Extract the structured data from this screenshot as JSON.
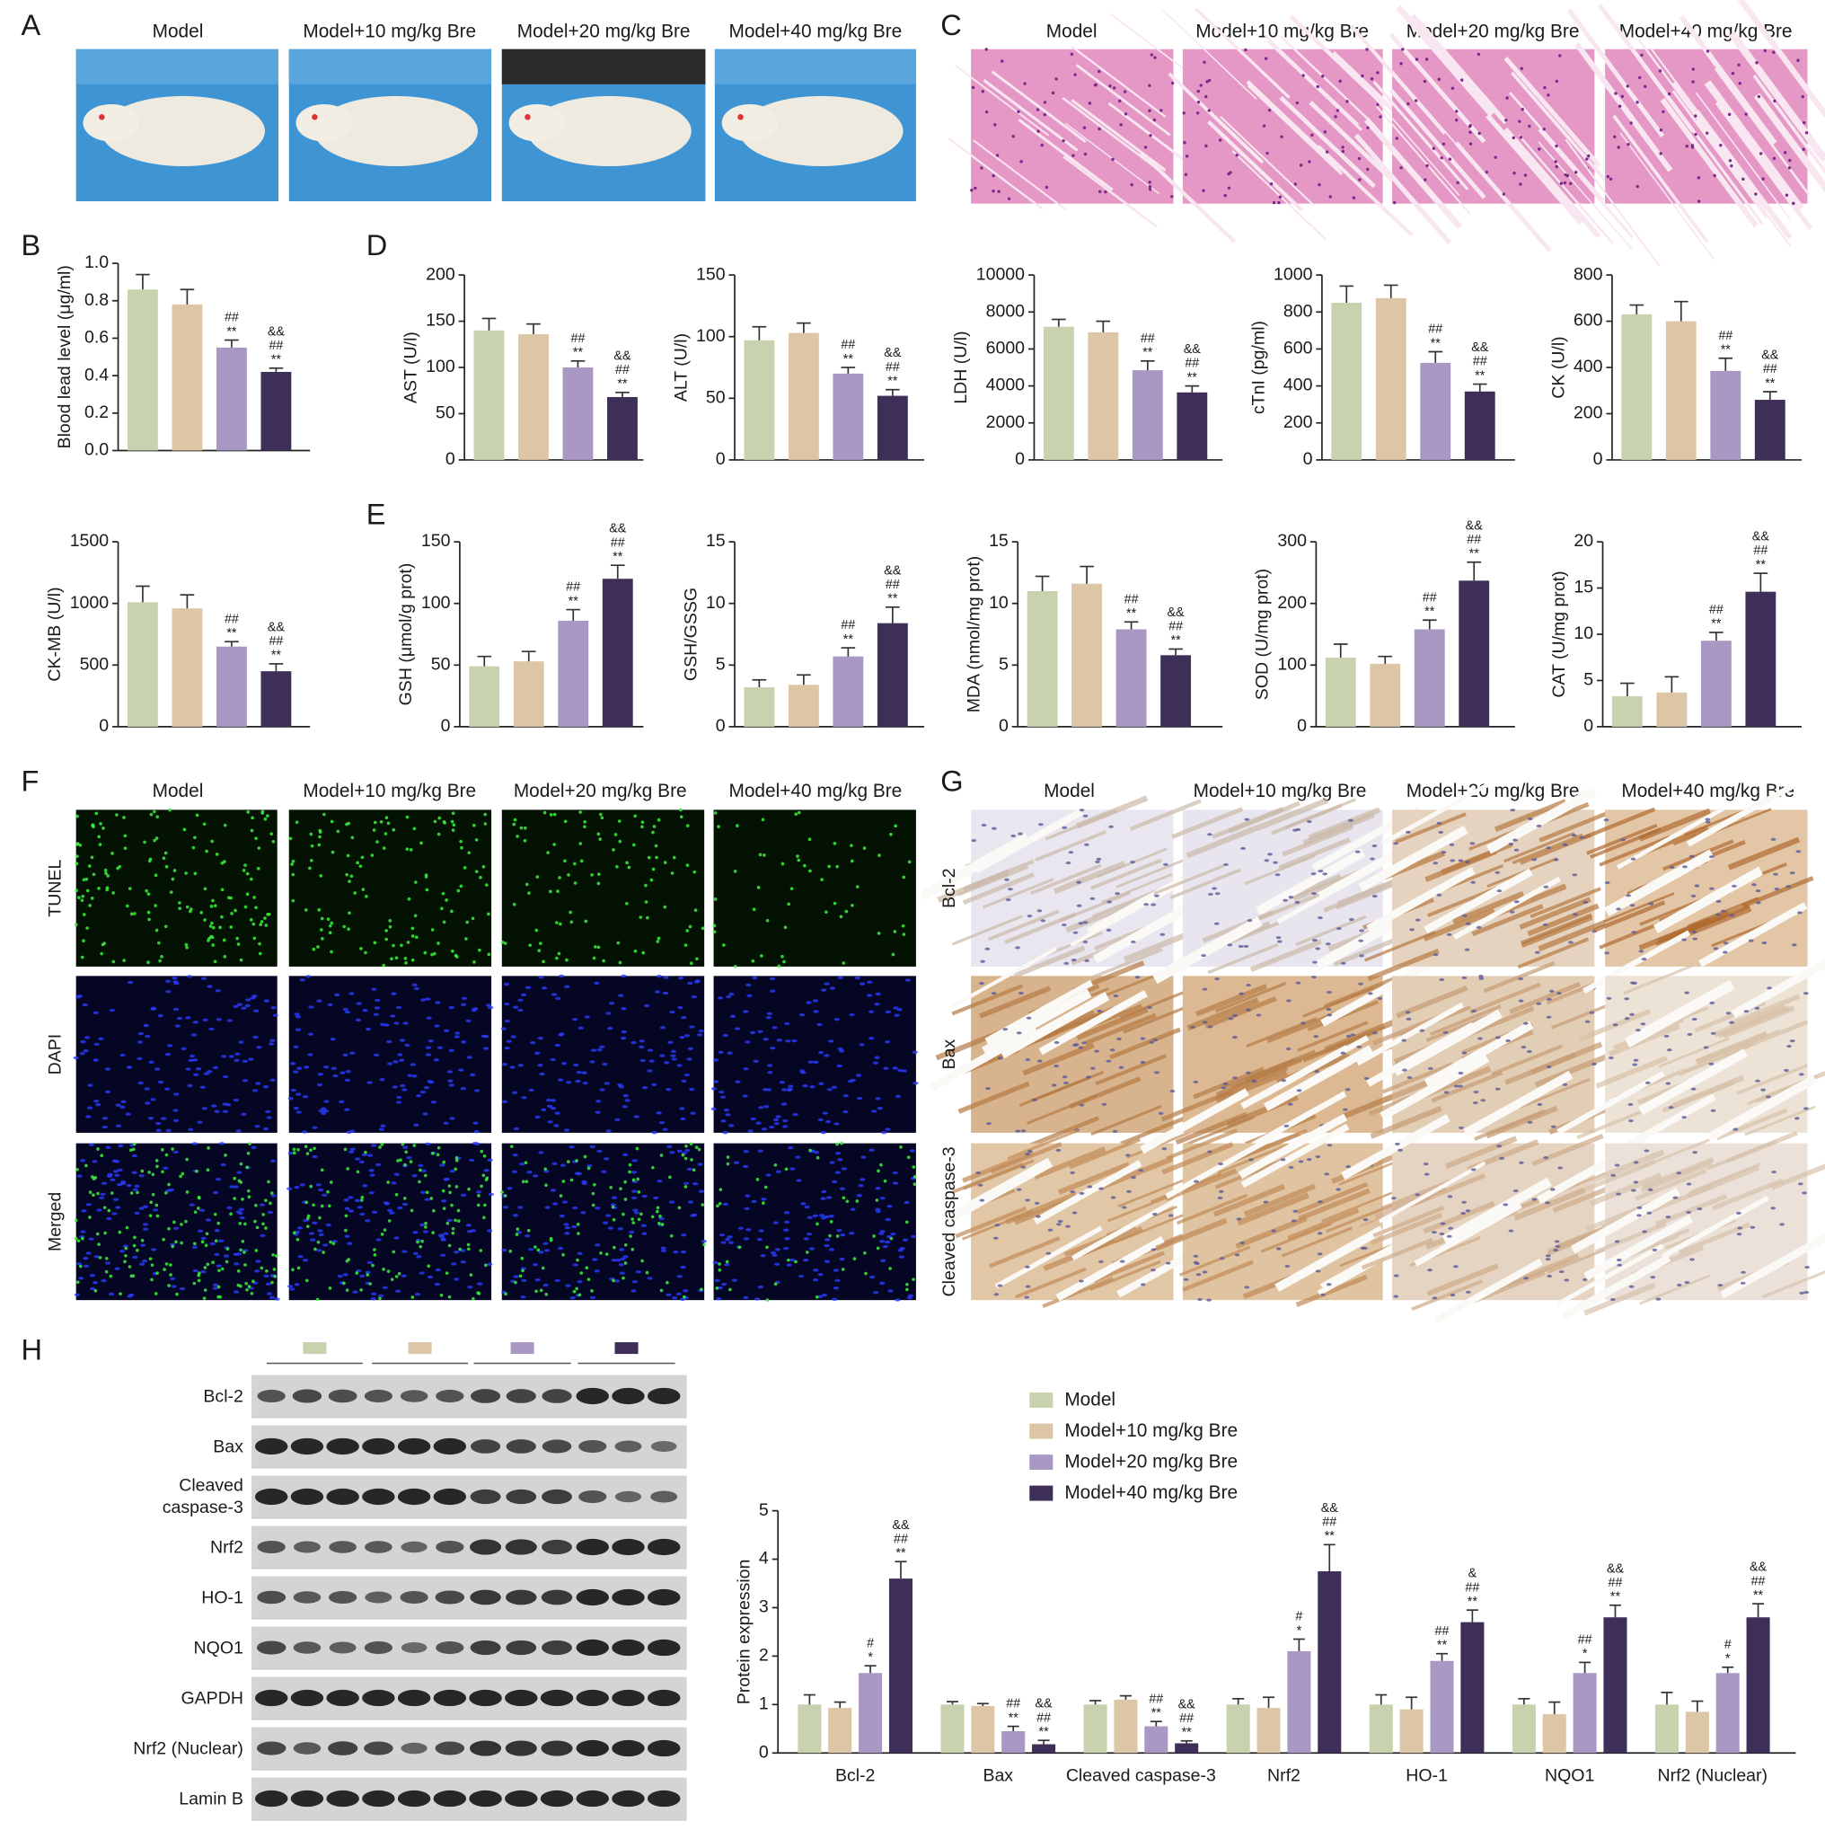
{
  "panel_labels": [
    "A",
    "B",
    "C",
    "D",
    "E",
    "F",
    "G",
    "H"
  ],
  "group_headers": [
    "Model",
    "Model+10 mg/kg Bre",
    "Model+20 mg/kg Bre",
    "Model+40 mg/kg Bre"
  ],
  "panel_f_rows": [
    "TUNEL",
    "DAPI",
    "Merged"
  ],
  "panel_g_rows": [
    "Bcl-2",
    "Bax",
    "Cleaved caspase-3"
  ],
  "blot_rows": [
    "Bcl-2",
    "Bax",
    "Cleaved caspase-3",
    "Nrf2",
    "HO-1",
    "NQO1",
    "GAPDH",
    "Nrf2 (Nuclear)",
    "Lamin B"
  ],
  "chart_data": [
    {
      "type": "bar",
      "ylabel": "Blood lead level (μg/ml)",
      "colors": [
        "#c9d2ae",
        "#dcc6a6",
        "#a998c4",
        "#3d2f58"
      ],
      "values": [
        0.86,
        0.78,
        0.55,
        0.42
      ],
      "errors": [
        0.08,
        0.08,
        0.04,
        0.02
      ],
      "significance": [
        [],
        [],
        [
          "##",
          "**"
        ],
        [
          "&&",
          "##",
          "**"
        ]
      ],
      "ylim": [
        0,
        1.0
      ],
      "yticks": [
        {
          "value": 0,
          "label": "0.0"
        },
        {
          "value": 0.2,
          "label": "0.2"
        },
        {
          "value": 0.4,
          "label": "0.4"
        },
        {
          "value": 0.6,
          "label": "0.6"
        },
        {
          "value": 0.8,
          "label": "0.8"
        },
        {
          "value": 1.0,
          "label": "1.0"
        }
      ]
    },
    {
      "type": "bar",
      "ylabel": "AST (U/l)",
      "colors": [
        "#c9d2ae",
        "#dcc6a6",
        "#a998c4",
        "#3d2f58"
      ],
      "values": [
        140,
        136,
        100,
        68
      ],
      "errors": [
        13,
        11,
        7,
        5
      ],
      "significance": [
        [],
        [],
        [
          "##",
          "**"
        ],
        [
          "&&",
          "##",
          "**"
        ]
      ],
      "ylim": [
        0,
        200
      ],
      "yticks": [
        0,
        50,
        100,
        150,
        200
      ]
    },
    {
      "type": "bar",
      "ylabel": "ALT (U/l)",
      "colors": [
        "#c9d2ae",
        "#dcc6a6",
        "#a998c4",
        "#3d2f58"
      ],
      "values": [
        97,
        103,
        70,
        52
      ],
      "errors": [
        11,
        8,
        5,
        5
      ],
      "significance": [
        [],
        [],
        [
          "##",
          "**"
        ],
        [
          "&&",
          "##",
          "**"
        ]
      ],
      "ylim": [
        0,
        150
      ],
      "yticks": [
        0,
        50,
        100,
        150
      ]
    },
    {
      "type": "bar",
      "ylabel": "LDH (U/l)",
      "colors": [
        "#c9d2ae",
        "#dcc6a6",
        "#a998c4",
        "#3d2f58"
      ],
      "values": [
        7200,
        6900,
        4850,
        3650
      ],
      "errors": [
        400,
        600,
        500,
        350
      ],
      "significance": [
        [],
        [],
        [
          "##",
          "**"
        ],
        [
          "&&",
          "##",
          "**"
        ]
      ],
      "ylim": [
        0,
        10000
      ],
      "yticks": [
        0,
        2000,
        4000,
        6000,
        8000,
        10000
      ]
    },
    {
      "type": "bar",
      "ylabel": "cTnI (pg/ml)",
      "colors": [
        "#c9d2ae",
        "#dcc6a6",
        "#a998c4",
        "#3d2f58"
      ],
      "values": [
        850,
        875,
        525,
        370
      ],
      "errors": [
        90,
        70,
        60,
        40
      ],
      "significance": [
        [],
        [],
        [
          "##",
          "**"
        ],
        [
          "&&",
          "##",
          "**"
        ]
      ],
      "ylim": [
        0,
        1000
      ],
      "yticks": [
        0,
        200,
        400,
        600,
        800,
        1000
      ]
    },
    {
      "type": "bar",
      "ylabel": "CK (U/l)",
      "colors": [
        "#c9d2ae",
        "#dcc6a6",
        "#a998c4",
        "#3d2f58"
      ],
      "values": [
        630,
        600,
        385,
        260
      ],
      "errors": [
        40,
        85,
        55,
        35
      ],
      "significance": [
        [],
        [],
        [
          "##",
          "**"
        ],
        [
          "&&",
          "##",
          "**"
        ]
      ],
      "ylim": [
        0,
        800
      ],
      "yticks": [
        0,
        200,
        400,
        600,
        800
      ]
    },
    {
      "type": "bar",
      "ylabel": "CK-MB (U/l)",
      "colors": [
        "#c9d2ae",
        "#dcc6a6",
        "#a998c4",
        "#3d2f58"
      ],
      "values": [
        1010,
        960,
        650,
        450
      ],
      "errors": [
        130,
        110,
        40,
        60
      ],
      "significance": [
        [],
        [],
        [
          "##",
          "**"
        ],
        [
          "&&",
          "##",
          "**"
        ]
      ],
      "ylim": [
        0,
        1500
      ],
      "yticks": [
        0,
        500,
        1000,
        1500
      ]
    },
    {
      "type": "bar",
      "ylabel": "GSH (μmol/g prot)",
      "colors": [
        "#c9d2ae",
        "#dcc6a6",
        "#a998c4",
        "#3d2f58"
      ],
      "values": [
        49,
        53,
        86,
        120
      ],
      "errors": [
        8,
        8,
        9,
        11
      ],
      "significance": [
        [],
        [],
        [
          "##",
          "**"
        ],
        [
          "&&",
          "##",
          "**"
        ]
      ],
      "ylim": [
        0,
        150
      ],
      "yticks": [
        0,
        50,
        100,
        150
      ]
    },
    {
      "type": "bar",
      "ylabel": "GSH/GSSG",
      "colors": [
        "#c9d2ae",
        "#dcc6a6",
        "#a998c4",
        "#3d2f58"
      ],
      "values": [
        3.2,
        3.4,
        5.7,
        8.4
      ],
      "errors": [
        0.6,
        0.8,
        0.7,
        1.3
      ],
      "significance": [
        [],
        [],
        [
          "##",
          "**"
        ],
        [
          "&&",
          "##",
          "**"
        ]
      ],
      "ylim": [
        0,
        15
      ],
      "yticks": [
        0,
        5,
        10,
        15
      ]
    },
    {
      "type": "bar",
      "ylabel": "MDA (nmol/mg prot)",
      "colors": [
        "#c9d2ae",
        "#dcc6a6",
        "#a998c4",
        "#3d2f58"
      ],
      "values": [
        11.0,
        11.6,
        7.9,
        5.8
      ],
      "errors": [
        1.2,
        1.4,
        0.6,
        0.5
      ],
      "significance": [
        [],
        [],
        [
          "##",
          "**"
        ],
        [
          "&&",
          "##",
          "**"
        ]
      ],
      "ylim": [
        0,
        15
      ],
      "yticks": [
        0,
        5,
        10,
        15
      ]
    },
    {
      "type": "bar",
      "ylabel": "SOD (U/mg prot)",
      "colors": [
        "#c9d2ae",
        "#dcc6a6",
        "#a998c4",
        "#3d2f58"
      ],
      "values": [
        112,
        102,
        158,
        237
      ],
      "errors": [
        22,
        12,
        15,
        30
      ],
      "significance": [
        [],
        [],
        [
          "##",
          "**"
        ],
        [
          "&&",
          "##",
          "**"
        ]
      ],
      "ylim": [
        0,
        300
      ],
      "yticks": [
        0,
        100,
        200,
        300
      ]
    },
    {
      "type": "bar",
      "ylabel": "CAT (U/mg prot)",
      "colors": [
        "#c9d2ae",
        "#dcc6a6",
        "#a998c4",
        "#3d2f58"
      ],
      "values": [
        3.3,
        3.7,
        9.3,
        14.6
      ],
      "errors": [
        1.4,
        1.7,
        0.9,
        2.0
      ],
      "significance": [
        [],
        [],
        [
          "##",
          "**"
        ],
        [
          "&&",
          "##",
          "**"
        ]
      ],
      "ylim": [
        0,
        20
      ],
      "yticks": [
        0,
        5,
        10,
        15,
        20
      ]
    },
    {
      "type": "bar",
      "ylabel": "Protein expression",
      "categories": [
        "Bcl-2",
        "Bax",
        "Cleaved caspase-3",
        "Nrf2",
        "HO-1",
        "NQO1",
        "Nrf2 (Nuclear)"
      ],
      "series": [
        {
          "name": "Model",
          "color": "#c9d2ae",
          "values": [
            1.0,
            1.0,
            1.0,
            1.0,
            1.0,
            1.0,
            1.0
          ],
          "errors": [
            0.2,
            0.06,
            0.08,
            0.12,
            0.2,
            0.12,
            0.25
          ],
          "significance": [
            [],
            [],
            [],
            [],
            [],
            [],
            []
          ]
        },
        {
          "name": "Model+10 mg/kg Bre",
          "color": "#dcc6a6",
          "values": [
            0.93,
            0.97,
            1.1,
            0.93,
            0.9,
            0.8,
            0.85
          ],
          "errors": [
            0.12,
            0.05,
            0.08,
            0.22,
            0.25,
            0.25,
            0.22
          ],
          "significance": [
            [],
            [],
            [],
            [],
            [],
            [],
            []
          ]
        },
        {
          "name": "Model+20 mg/kg Bre",
          "color": "#a998c4",
          "values": [
            1.65,
            0.45,
            0.55,
            2.1,
            1.9,
            1.65,
            1.65
          ],
          "errors": [
            0.15,
            0.1,
            0.1,
            0.25,
            0.15,
            0.22,
            0.12
          ],
          "significance": [
            [
              "#",
              "*"
            ],
            [
              "##",
              "**"
            ],
            [
              "##",
              "**"
            ],
            [
              "#",
              "*"
            ],
            [
              "##",
              "**"
            ],
            [
              "##",
              "*"
            ],
            [
              "#",
              "*"
            ]
          ]
        },
        {
          "name": "Model+40 mg/kg Bre",
          "color": "#3d2f58",
          "values": [
            3.6,
            0.18,
            0.2,
            3.75,
            2.7,
            2.8,
            2.8
          ],
          "errors": [
            0.35,
            0.08,
            0.05,
            0.55,
            0.25,
            0.25,
            0.28
          ],
          "significance": [
            [
              "&&",
              "##",
              "**"
            ],
            [
              "&&",
              "##",
              "**"
            ],
            [
              "&&",
              "##",
              "**"
            ],
            [
              "&&",
              "##",
              "**"
            ],
            [
              "&",
              "##",
              "**"
            ],
            [
              "&&",
              "##",
              "**"
            ],
            [
              "&&",
              "##",
              "**"
            ]
          ]
        }
      ],
      "ylim": [
        0,
        5
      ],
      "yticks": [
        0,
        1,
        2,
        3,
        4,
        5
      ]
    }
  ]
}
